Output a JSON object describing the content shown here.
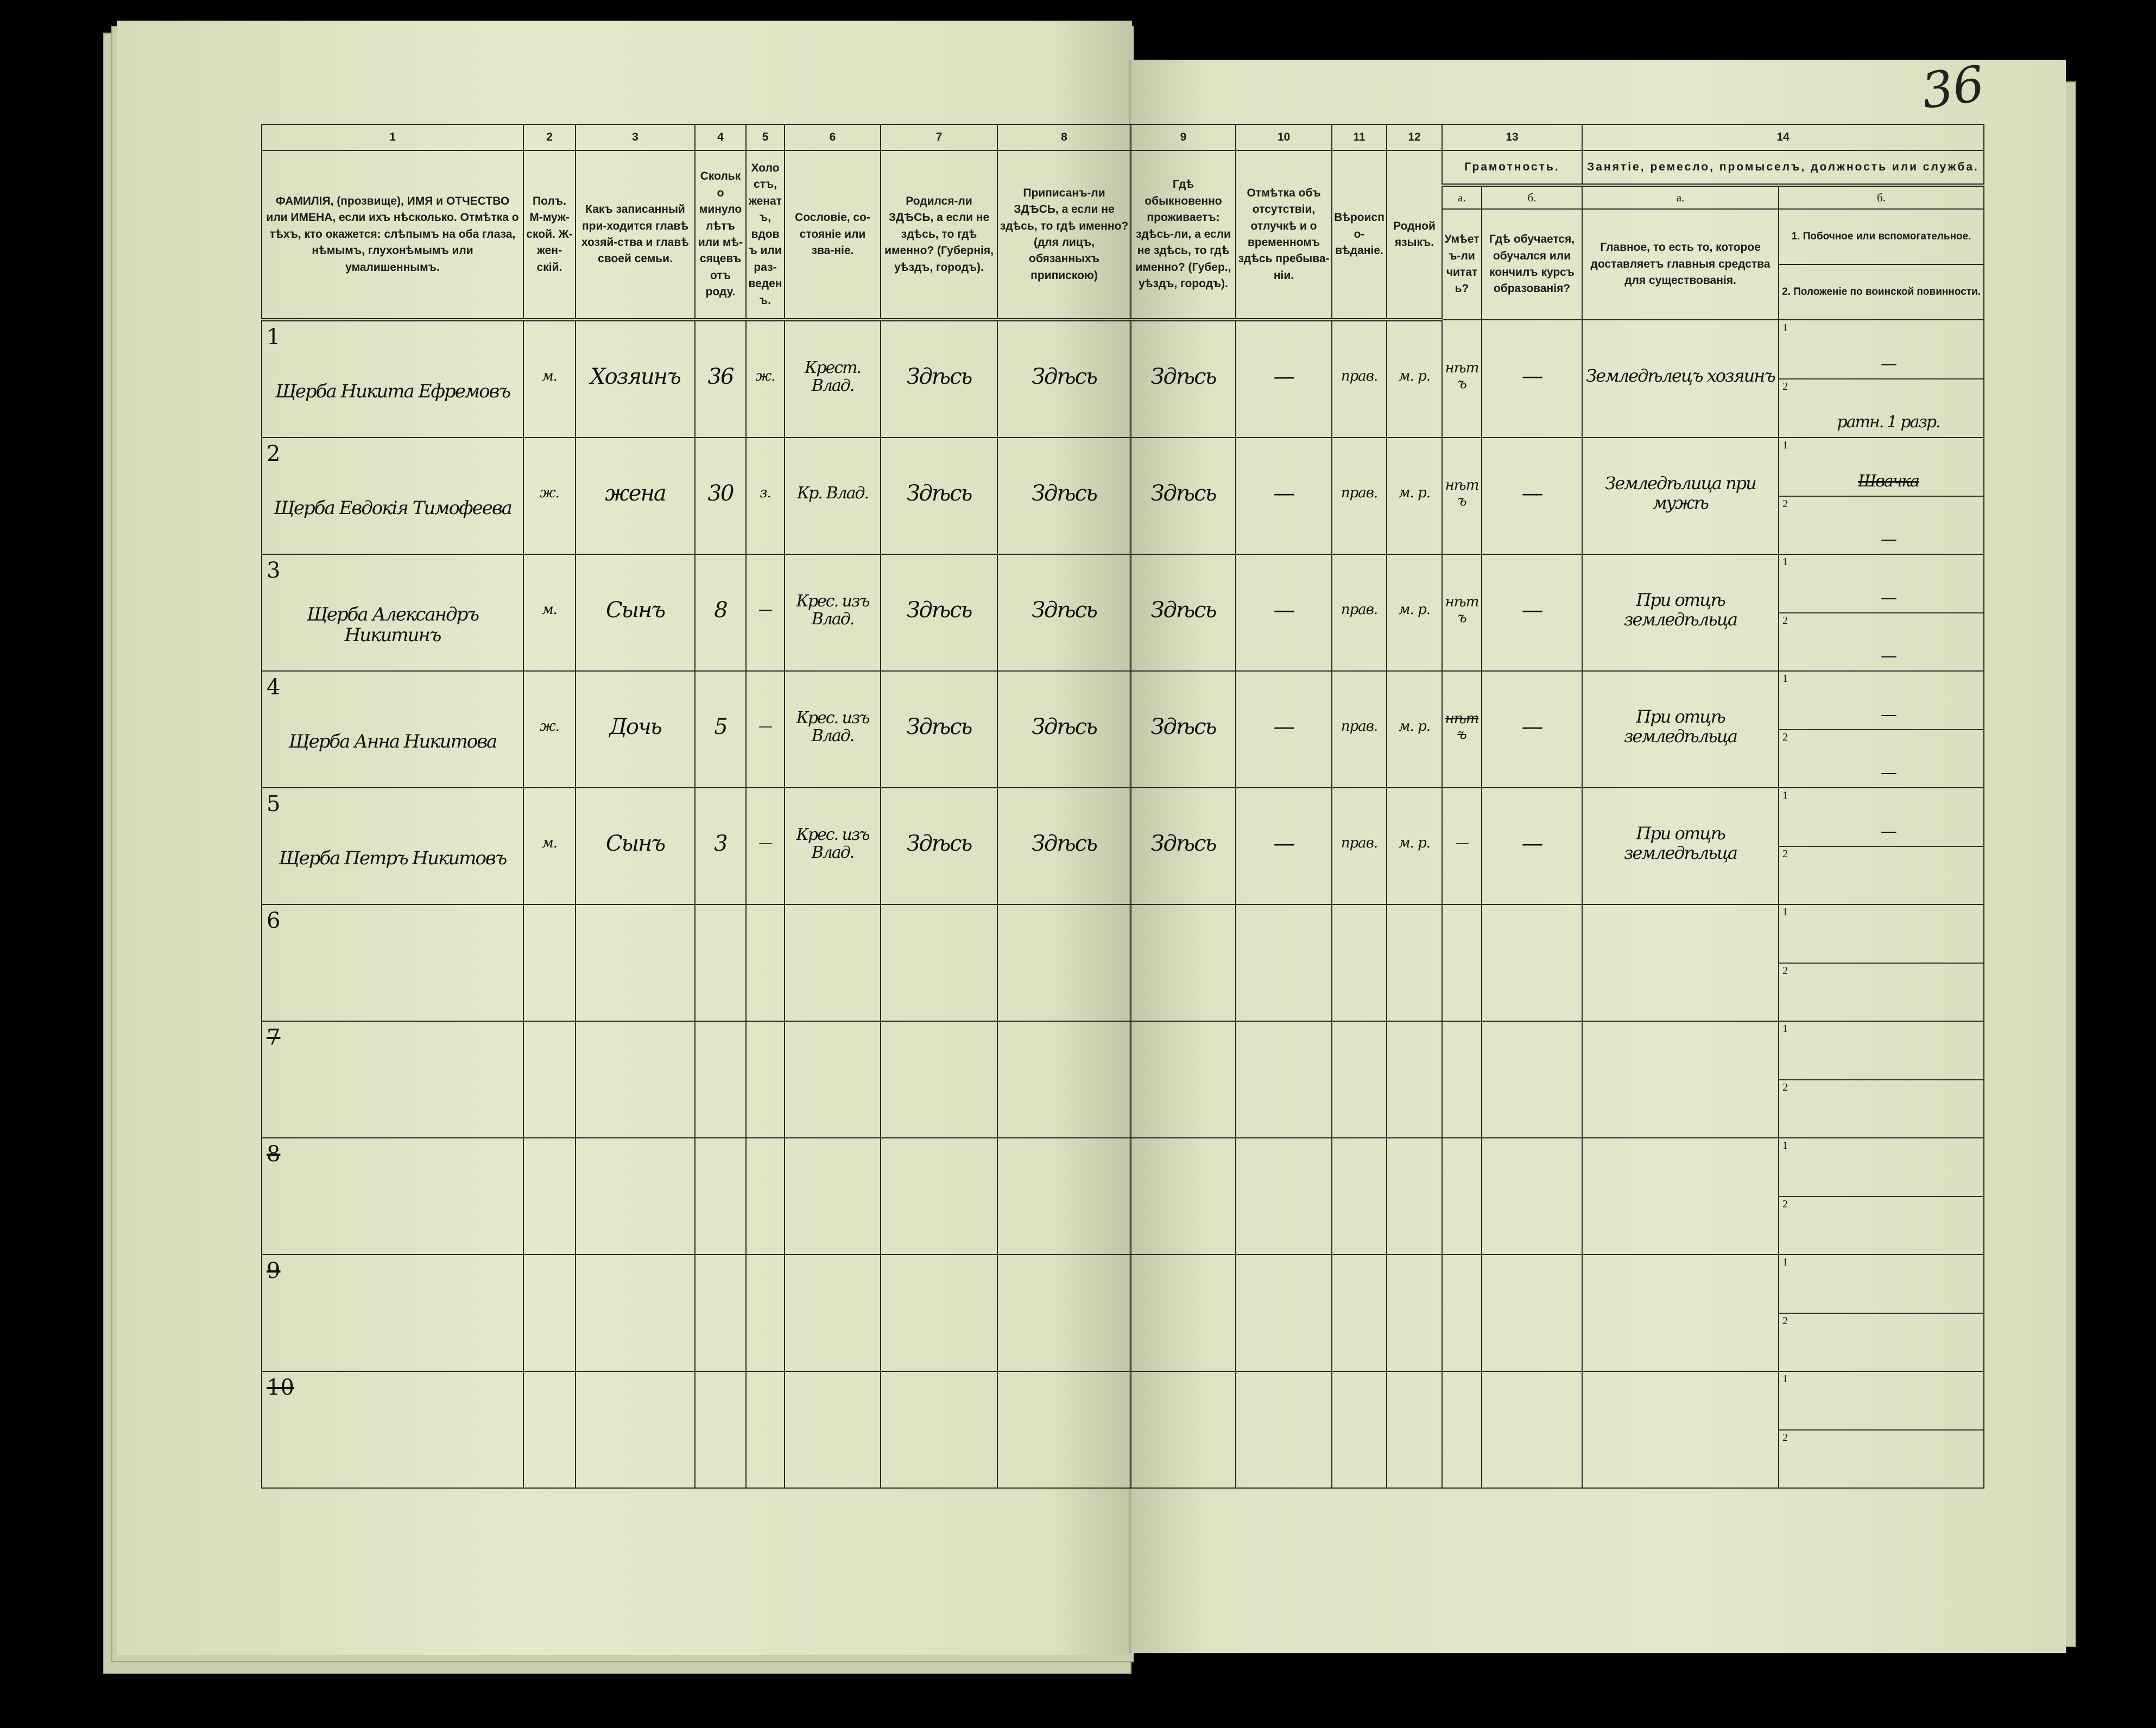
{
  "sheet_number": "36",
  "columns": [
    {
      "num": "1",
      "text": "ФАМИЛІЯ, (прозвище), ИМЯ и ОТЧЕСТВО или ИМЕНА, если ихъ нѣсколько. Отмѣтка о тѣхъ, кто окажется: слѣпымъ на оба глаза, нѣмымъ, глухонѣмымъ или умалишеннымъ."
    },
    {
      "num": "2",
      "text": "Полъ. М-муж-ской. Ж-жен-скій."
    },
    {
      "num": "3",
      "text": "Какъ записанный при-ходится главѣ хозяй-ства и главѣ своей семьи."
    },
    {
      "num": "4",
      "text": "Сколько минуло лѣтъ или мѣ-сяцевъ отъ роду."
    },
    {
      "num": "5",
      "text": "Холостъ, женатъ, вдовъ или раз-веденъ."
    },
    {
      "num": "6",
      "text": "Сословіе, со-стояніе или зва-ніе."
    },
    {
      "num": "7",
      "text": "Родился-ли ЗДѢСЬ, а если не здѣсь, то гдѣ именно? (Губернія, уѣздъ, городъ)."
    },
    {
      "num": "8",
      "text": "Приписанъ-ли ЗДѢСЬ, а если не здѣсь, то гдѣ именно? (для лицъ, обязанныхъ припискою)"
    },
    {
      "num": "9",
      "text": "Гдѣ обыкновенно проживаетъ: здѣсь-ли, а если не здѣсь, то гдѣ именно? (Губер., уѣздъ, городъ)."
    },
    {
      "num": "10",
      "text": "Отмѣтка объ отсутствіи, отлучкѣ и о временномъ здѣсь пребыва-ніи."
    },
    {
      "num": "11",
      "text": "Вѣроиспо-вѣданіе."
    },
    {
      "num": "12",
      "text": "Родной языкъ."
    }
  ],
  "col13": {
    "num": "13",
    "title": "Грамотность.",
    "a_label": "а.",
    "a_text": "Умѣетъ-ли читать?",
    "b_label": "б.",
    "b_text": "Гдѣ обучается, обучался или кончилъ курсъ образованія?"
  },
  "col14": {
    "num": "14",
    "title": "Занятіе, ремесло, промыселъ, должность или служба.",
    "a_label": "а.",
    "a_text": "Главное, то есть то, которое доставляетъ главныя средства для существованія.",
    "b_label": "б.",
    "b_text1": "1. Побочное или вспомогательное.",
    "b_text2": "2. Положеніе по воинской повинности."
  },
  "subrow_labels": [
    "1",
    "2"
  ],
  "row_numbers": [
    "1",
    "2",
    "3",
    "4",
    "5",
    "6",
    "7",
    "8",
    "9",
    "10"
  ],
  "rows": [
    {
      "name": "Щерба Никита Ефремовъ",
      "sex": "м.",
      "relation": "Хозяинъ",
      "age": "36",
      "marital": "ж.",
      "estate": "Крест. Влад.",
      "born": "Здѣсь",
      "registered": "Здѣсь",
      "residence": "Здѣсь",
      "absence": "—",
      "religion": "прав.",
      "language": "м. р.",
      "reads": "нѣтъ",
      "schooling": "—",
      "occupation": "Земледѣлецъ хозяинъ",
      "secondary": "—",
      "military": "ратн. 1 разр."
    },
    {
      "name": "Щерба Евдокія Тимофеева",
      "sex": "ж.",
      "relation": "жена",
      "age": "30",
      "marital": "з.",
      "estate": "Кр. Влад.",
      "born": "Здѣсь",
      "registered": "Здѣсь",
      "residence": "Здѣсь",
      "absence": "—",
      "religion": "прав.",
      "language": "м. р.",
      "reads": "нѣтъ",
      "schooling": "—",
      "occupation": "Земледѣлица при мужѣ",
      "secondary": "Швачка",
      "military": "—"
    },
    {
      "name": "Щерба Александръ Никитинъ",
      "sex": "м.",
      "relation": "Сынъ",
      "age": "8",
      "marital": "—",
      "estate": "Крес. изъ Влад.",
      "born": "Здѣсь",
      "registered": "Здѣсь",
      "residence": "Здѣсь",
      "absence": "—",
      "religion": "прав.",
      "language": "м. р.",
      "reads": "нѣтъ",
      "schooling": "—",
      "occupation": "При отцѣ земледѣльца",
      "secondary": "—",
      "military": "—"
    },
    {
      "name": "Щерба Анна Никитова",
      "sex": "ж.",
      "relation": "Дочь",
      "age": "5",
      "marital": "—",
      "estate": "Крес. изъ Влад.",
      "born": "Здѣсь",
      "registered": "Здѣсь",
      "residence": "Здѣсь",
      "absence": "—",
      "religion": "прав.",
      "language": "м. р.",
      "reads": "нѣтъ",
      "schooling": "—",
      "occupation": "При отцѣ земледѣльца",
      "secondary": "—",
      "military": "—"
    },
    {
      "name": "Щерба Петръ Никитовъ",
      "sex": "м.",
      "relation": "Сынъ",
      "age": "3",
      "marital": "—",
      "estate": "Крес. изъ Влад.",
      "born": "Здѣсь",
      "registered": "Здѣсь",
      "residence": "Здѣсь",
      "absence": "—",
      "religion": "прав.",
      "language": "м. р.",
      "reads": "—",
      "schooling": "—",
      "occupation": "При отцѣ земледѣльца",
      "secondary": "—",
      "military": ""
    }
  ]
}
